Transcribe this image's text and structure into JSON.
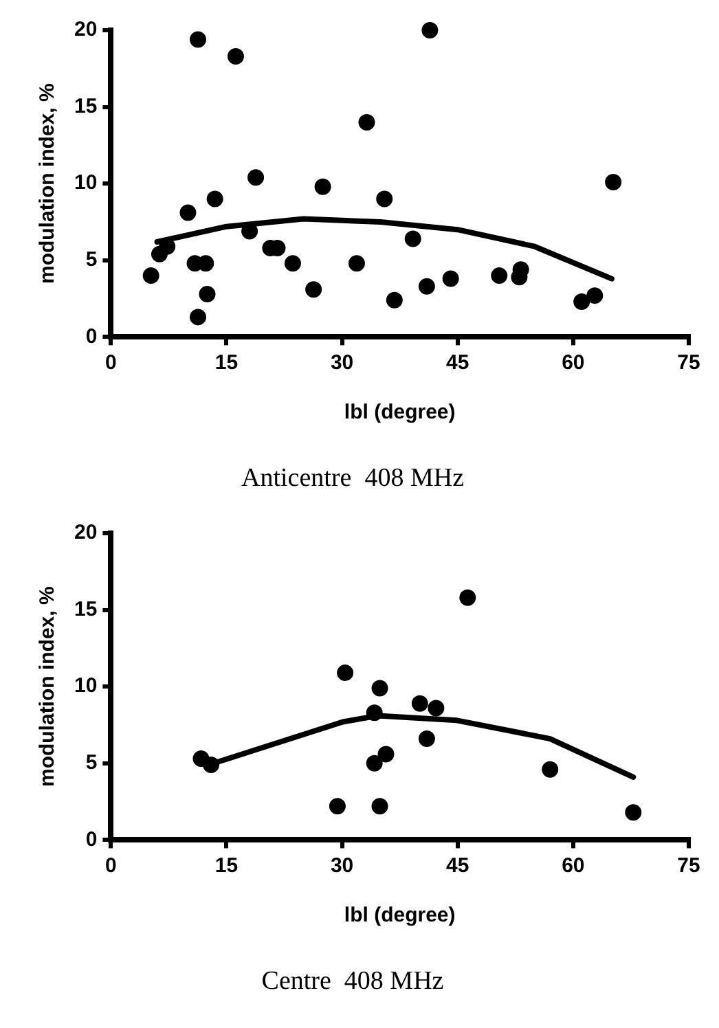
{
  "chart_data": [
    {
      "type": "scatter",
      "title": "Anticentre  408 MHz",
      "xlabel": "lbl (degree)",
      "ylabel": "modulation index, %",
      "xlim": [
        0,
        75
      ],
      "ylim": [
        0,
        20
      ],
      "xticks": [
        0,
        15,
        30,
        45,
        60,
        75
      ],
      "yticks": [
        0,
        5,
        10,
        15,
        20
      ],
      "grid": false,
      "legend": false,
      "series": [
        {
          "marker": "circle",
          "color": "#000000",
          "x": [
            5.2,
            6.3,
            7.3,
            10.0,
            11.3,
            10.9,
            12.3,
            12.5,
            11.3,
            13.5,
            16.2,
            18.0,
            18.8,
            20.7,
            21.6,
            23.6,
            26.3,
            27.5,
            31.9,
            33.2,
            35.5,
            36.8,
            39.2,
            41.0,
            41.4,
            44.1,
            50.4,
            53.2,
            53.0,
            61.1,
            62.8,
            65.2
          ],
          "values": [
            4.0,
            5.4,
            5.9,
            8.1,
            19.4,
            4.8,
            4.8,
            2.8,
            1.3,
            9.0,
            18.3,
            6.9,
            10.4,
            5.8,
            5.8,
            4.8,
            3.1,
            9.8,
            4.8,
            14.0,
            9.0,
            2.4,
            6.4,
            3.3,
            20.0,
            3.8,
            4.0,
            4.4,
            3.9,
            2.3,
            2.7,
            10.1
          ]
        },
        {
          "type": "line",
          "marker": "none",
          "color": "#000000",
          "x": [
            6,
            15,
            25,
            35,
            45,
            55,
            65
          ],
          "values": [
            6.2,
            7.2,
            7.7,
            7.5,
            7.0,
            5.9,
            3.8
          ]
        }
      ]
    },
    {
      "type": "scatter",
      "title": "Centre  408 MHz",
      "xlabel": "lbl (degree)",
      "ylabel": "modulation index, %",
      "xlim": [
        0,
        75
      ],
      "ylim": [
        0,
        20
      ],
      "xticks": [
        0,
        15,
        30,
        45,
        60,
        75
      ],
      "yticks": [
        0,
        5,
        10,
        15,
        20
      ],
      "grid": false,
      "legend": false,
      "series": [
        {
          "marker": "circle",
          "color": "#000000",
          "x": [
            11.7,
            13.0,
            29.4,
            30.4,
            34.2,
            34.2,
            34.9,
            34.9,
            35.7,
            40.1,
            41.0,
            42.2,
            46.3,
            57.0,
            67.8
          ],
          "values": [
            5.3,
            4.9,
            2.2,
            10.9,
            8.3,
            5.0,
            9.9,
            2.2,
            5.6,
            8.9,
            6.6,
            8.6,
            15.8,
            4.6,
            1.8
          ]
        },
        {
          "type": "line",
          "marker": "none",
          "color": "#000000",
          "x": [
            12.7,
            30.1,
            34.6,
            44.9,
            57.0,
            67.8
          ],
          "values": [
            4.9,
            7.7,
            8.1,
            7.8,
            6.6,
            4.1
          ]
        }
      ]
    }
  ]
}
